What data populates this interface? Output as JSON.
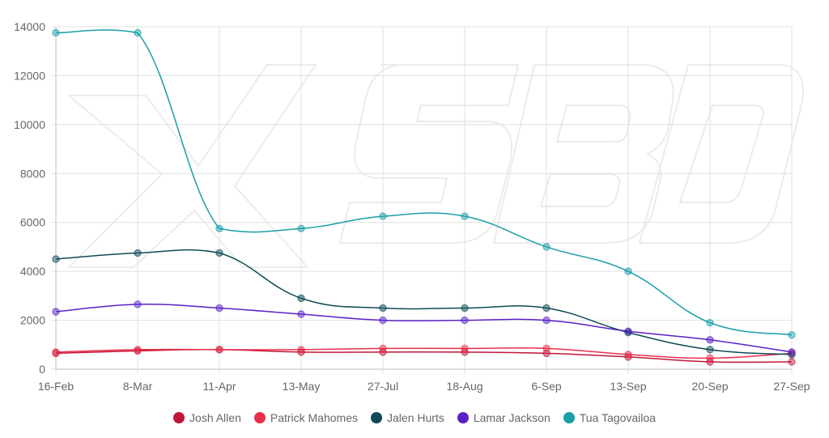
{
  "chart_data": {
    "type": "line",
    "categories": [
      "16-Feb",
      "8-Mar",
      "11-Apr",
      "13-May",
      "27-Jul",
      "18-Aug",
      "6-Sep",
      "13-Sep",
      "20-Sep",
      "27-Sep"
    ],
    "ylim": [
      0,
      14000
    ],
    "yticks": [
      0,
      2000,
      4000,
      6000,
      8000,
      10000,
      12000,
      14000
    ],
    "grid": true,
    "legend_position": "bottom",
    "watermark": "SBD",
    "series": [
      {
        "name": "Josh Allen",
        "color": "#c0163a",
        "values": [
          650,
          750,
          800,
          700,
          700,
          700,
          650,
          500,
          300,
          300
        ]
      },
      {
        "name": "Patrick Mahomes",
        "color": "#e8304a",
        "values": [
          700,
          800,
          800,
          800,
          850,
          850,
          850,
          600,
          450,
          650
        ]
      },
      {
        "name": "Jalen Hurts",
        "color": "#0e4a56",
        "values": [
          4500,
          4750,
          4750,
          2900,
          2500,
          2500,
          2500,
          1500,
          800,
          600
        ]
      },
      {
        "name": "Lamar Jackson",
        "color": "#5a20c8",
        "values": [
          2350,
          2650,
          2500,
          2250,
          2000,
          2000,
          2000,
          1550,
          1200,
          700
        ]
      },
      {
        "name": "Tua Tagovailoa",
        "color": "#1a9ea8",
        "values": [
          13750,
          13750,
          5750,
          5750,
          6250,
          6250,
          5000,
          4000,
          1900,
          1400
        ]
      }
    ]
  }
}
